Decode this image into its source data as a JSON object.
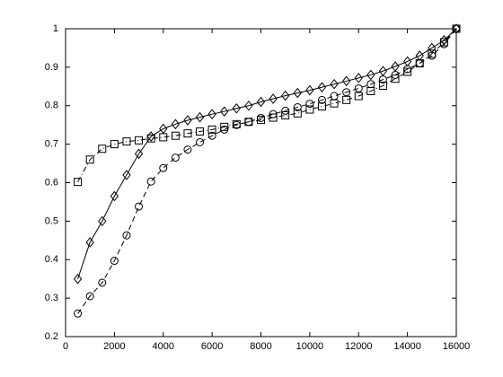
{
  "chart_data": {
    "type": "line",
    "x": [
      500,
      1000,
      1500,
      2000,
      2500,
      3000,
      3500,
      4000,
      4500,
      5000,
      5500,
      6000,
      6500,
      7000,
      7500,
      8000,
      8500,
      9000,
      9500,
      10000,
      10500,
      11000,
      11500,
      12000,
      12500,
      13000,
      13500,
      14000,
      14500,
      15000,
      15500,
      16000
    ],
    "series": [
      {
        "color": "#000000",
        "marker": "diamond",
        "line_style": "solid",
        "values": [
          0.35,
          0.445,
          0.5,
          0.565,
          0.62,
          0.675,
          0.72,
          0.74,
          0.752,
          0.762,
          0.77,
          0.778,
          0.785,
          0.793,
          0.8,
          0.81,
          0.818,
          0.826,
          0.833,
          0.84,
          0.848,
          0.856,
          0.864,
          0.872,
          0.88,
          0.89,
          0.902,
          0.915,
          0.93,
          0.95,
          0.97,
          1.0
        ]
      },
      {
        "color": "#000000",
        "marker": "circle",
        "line_style": "dashed",
        "values": [
          0.26,
          0.305,
          0.34,
          0.397,
          0.463,
          0.538,
          0.603,
          0.638,
          0.665,
          0.686,
          0.705,
          0.722,
          0.738,
          0.75,
          0.758,
          0.768,
          0.778,
          0.787,
          0.796,
          0.805,
          0.815,
          0.825,
          0.835,
          0.845,
          0.856,
          0.868,
          0.88,
          0.895,
          0.91,
          0.93,
          0.96,
          1.0
        ]
      },
      {
        "color": "#000000",
        "marker": "square",
        "line_style": "dashdot",
        "values": [
          0.602,
          0.66,
          0.688,
          0.7,
          0.707,
          0.71,
          0.715,
          0.718,
          0.722,
          0.728,
          0.733,
          0.738,
          0.745,
          0.752,
          0.758,
          0.763,
          0.769,
          0.775,
          0.78,
          0.79,
          0.798,
          0.806,
          0.815,
          0.825,
          0.838,
          0.852,
          0.87,
          0.888,
          0.91,
          0.935,
          0.965,
          1.0
        ]
      }
    ],
    "xlim": [
      0,
      16000
    ],
    "xticks": [
      0,
      2000,
      4000,
      6000,
      8000,
      10000,
      12000,
      14000,
      16000
    ],
    "ylim": [
      0.2,
      1
    ],
    "yticks": [
      0.2,
      0.3,
      0.4,
      0.5,
      0.6,
      0.7,
      0.8,
      0.9,
      1
    ],
    "grid": false
  }
}
